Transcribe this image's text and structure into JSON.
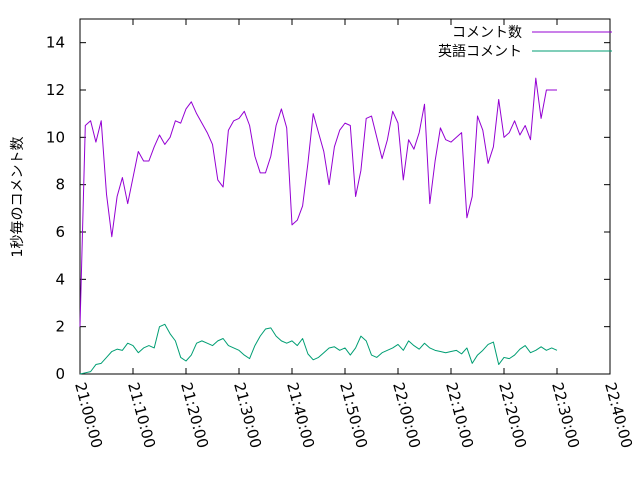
{
  "chart_data": {
    "type": "line",
    "title": "",
    "xlabel": "",
    "ylabel": "1秒毎のコメント数",
    "xlim": [
      "21:00:00",
      "22:40:00"
    ],
    "ylim": [
      0,
      15
    ],
    "x_ticks": [
      "21:00:00",
      "21:10:00",
      "21:20:00",
      "21:30:00",
      "21:40:00",
      "21:50:00",
      "22:00:00",
      "22:10:00",
      "22:20:00",
      "22:30:00",
      "22:40:00"
    ],
    "y_ticks": [
      0,
      2,
      4,
      6,
      8,
      10,
      12,
      14
    ],
    "grid": false,
    "legend_position": "top-right",
    "series": [
      {
        "name": "コメント数",
        "color": "#9400d3",
        "x": [
          "21:00:00",
          "21:01:00",
          "21:02:00",
          "21:03:00",
          "21:04:00",
          "21:05:00",
          "21:06:00",
          "21:07:00",
          "21:08:00",
          "21:09:00",
          "21:10:00",
          "21:11:00",
          "21:12:00",
          "21:13:00",
          "21:14:00",
          "21:15:00",
          "21:16:00",
          "21:17:00",
          "21:18:00",
          "21:19:00",
          "21:20:00",
          "21:21:00",
          "21:22:00",
          "21:23:00",
          "21:24:00",
          "21:25:00",
          "21:26:00",
          "21:27:00",
          "21:28:00",
          "21:29:00",
          "21:30:00",
          "21:31:00",
          "21:32:00",
          "21:33:00",
          "21:34:00",
          "21:35:00",
          "21:36:00",
          "21:37:00",
          "21:38:00",
          "21:39:00",
          "21:40:00",
          "21:41:00",
          "21:42:00",
          "21:43:00",
          "21:44:00",
          "21:45:00",
          "21:46:00",
          "21:47:00",
          "21:48:00",
          "21:49:00",
          "21:50:00",
          "21:51:00",
          "21:52:00",
          "21:53:00",
          "21:54:00",
          "21:55:00",
          "21:56:00",
          "21:57:00",
          "21:58:00",
          "21:59:00",
          "22:00:00",
          "22:01:00",
          "22:02:00",
          "22:03:00",
          "22:04:00",
          "22:05:00",
          "22:06:00",
          "22:07:00",
          "22:08:00",
          "22:09:00",
          "22:10:00",
          "22:11:00",
          "22:12:00",
          "22:13:00",
          "22:14:00",
          "22:15:00",
          "22:16:00",
          "22:17:00",
          "22:18:00",
          "22:19:00",
          "22:20:00",
          "22:21:00",
          "22:22:00",
          "22:23:00",
          "22:24:00",
          "22:25:00",
          "22:26:00",
          "22:27:00",
          "22:28:00",
          "22:29:00",
          "22:30:00"
        ],
        "values": [
          2.0,
          10.5,
          10.7,
          9.8,
          10.7,
          7.6,
          5.8,
          7.5,
          8.3,
          7.2,
          8.3,
          9.4,
          9.0,
          9.0,
          9.6,
          10.1,
          9.7,
          10.0,
          10.7,
          10.6,
          11.2,
          11.5,
          11.0,
          10.6,
          10.2,
          9.7,
          8.2,
          7.9,
          10.3,
          10.7,
          10.8,
          11.1,
          10.5,
          9.2,
          8.5,
          8.5,
          9.2,
          10.5,
          11.2,
          10.4,
          6.3,
          6.5,
          7.1,
          8.9,
          11.0,
          10.2,
          9.4,
          8.0,
          9.6,
          10.3,
          10.6,
          10.5,
          7.5,
          8.6,
          10.8,
          10.9,
          10.0,
          9.1,
          9.9,
          11.1,
          10.6,
          8.2,
          9.9,
          9.5,
          10.2,
          11.4,
          7.2,
          9.0,
          10.4,
          9.9,
          9.8,
          10.0,
          10.2,
          6.6,
          7.5,
          10.9,
          10.3,
          8.9,
          9.6,
          11.6,
          10.0,
          10.2,
          10.7,
          10.1,
          10.5,
          9.9,
          12.5,
          10.8,
          12.0,
          12.0,
          12.0
        ]
      },
      {
        "name": "英語コメント",
        "color": "#009e73",
        "x": [
          "21:00:00",
          "21:01:00",
          "21:02:00",
          "21:03:00",
          "21:04:00",
          "21:05:00",
          "21:06:00",
          "21:07:00",
          "21:08:00",
          "21:09:00",
          "21:10:00",
          "21:11:00",
          "21:12:00",
          "21:13:00",
          "21:14:00",
          "21:15:00",
          "21:16:00",
          "21:17:00",
          "21:18:00",
          "21:19:00",
          "21:20:00",
          "21:21:00",
          "21:22:00",
          "21:23:00",
          "21:24:00",
          "21:25:00",
          "21:26:00",
          "21:27:00",
          "21:28:00",
          "21:29:00",
          "21:30:00",
          "21:31:00",
          "21:32:00",
          "21:33:00",
          "21:34:00",
          "21:35:00",
          "21:36:00",
          "21:37:00",
          "21:38:00",
          "21:39:00",
          "21:40:00",
          "21:41:00",
          "21:42:00",
          "21:43:00",
          "21:44:00",
          "21:45:00",
          "21:46:00",
          "21:47:00",
          "21:48:00",
          "21:49:00",
          "21:50:00",
          "21:51:00",
          "21:52:00",
          "21:53:00",
          "21:54:00",
          "21:55:00",
          "21:56:00",
          "21:57:00",
          "21:58:00",
          "21:59:00",
          "22:00:00",
          "22:01:00",
          "22:02:00",
          "22:03:00",
          "22:04:00",
          "22:05:00",
          "22:06:00",
          "22:07:00",
          "22:08:00",
          "22:09:00",
          "22:10:00",
          "22:11:00",
          "22:12:00",
          "22:13:00",
          "22:14:00",
          "22:15:00",
          "22:16:00",
          "22:17:00",
          "22:18:00",
          "22:19:00",
          "22:20:00",
          "22:21:00",
          "22:22:00",
          "22:23:00",
          "22:24:00",
          "22:25:00",
          "22:26:00",
          "22:27:00",
          "22:28:00",
          "22:29:00",
          "22:30:00"
        ],
        "values": [
          0.0,
          0.05,
          0.1,
          0.4,
          0.45,
          0.7,
          0.95,
          1.05,
          1.0,
          1.3,
          1.2,
          0.9,
          1.1,
          1.2,
          1.1,
          2.0,
          2.1,
          1.7,
          1.4,
          0.7,
          0.55,
          0.8,
          1.3,
          1.4,
          1.3,
          1.2,
          1.4,
          1.5,
          1.2,
          1.1,
          1.0,
          0.8,
          0.65,
          1.2,
          1.6,
          1.9,
          1.95,
          1.6,
          1.4,
          1.3,
          1.4,
          1.2,
          1.5,
          0.85,
          0.6,
          0.7,
          0.9,
          1.1,
          1.15,
          1.0,
          1.1,
          0.8,
          1.1,
          1.6,
          1.4,
          0.8,
          0.7,
          0.9,
          1.0,
          1.1,
          1.25,
          1.0,
          1.4,
          1.2,
          1.05,
          1.3,
          1.1,
          1.0,
          0.95,
          0.9,
          0.95,
          1.0,
          0.85,
          1.1,
          0.45,
          0.8,
          1.0,
          1.25,
          1.35,
          0.4,
          0.7,
          0.65,
          0.8,
          1.05,
          1.2,
          0.9,
          1.0,
          1.15,
          1.0,
          1.1,
          1.0
        ]
      }
    ]
  }
}
